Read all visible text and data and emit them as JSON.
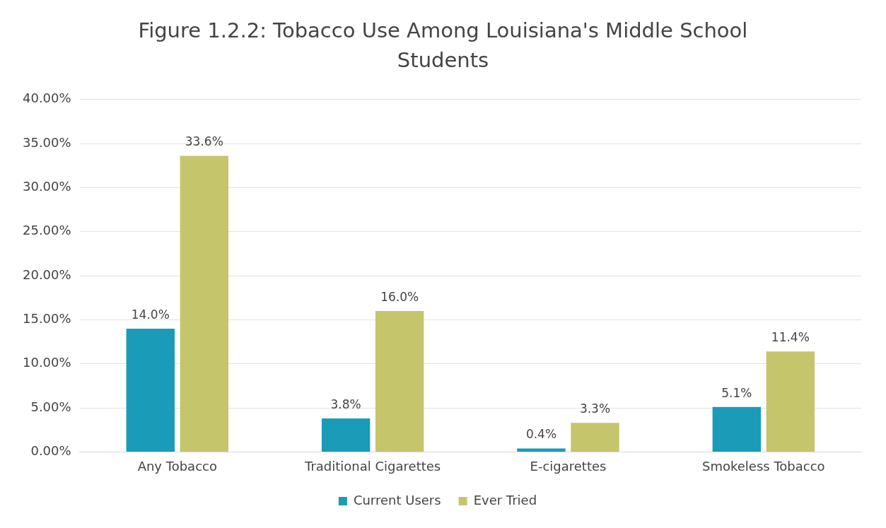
{
  "chart_data": {
    "type": "bar",
    "title": "Figure 1.2.2: Tobacco Use Among Louisiana's Middle School Students",
    "categories": [
      "Any Tobacco",
      "Traditional Cigarettes",
      "E-cigarettes",
      "Smokeless Tobacco"
    ],
    "series": [
      {
        "name": "Current Users",
        "color": "#1a9bb8",
        "values": [
          14.0,
          3.8,
          0.4,
          5.1
        ],
        "value_labels": [
          "14.0%",
          "3.8%",
          "0.4%",
          "5.1%"
        ]
      },
      {
        "name": "Ever Tried",
        "color": "#c5c56c",
        "values": [
          33.6,
          16.0,
          3.3,
          11.4
        ],
        "value_labels": [
          "33.6%",
          "16.0%",
          "3.3%",
          "11.4%"
        ]
      }
    ],
    "ylim": [
      0,
      40
    ],
    "yticks": [
      {
        "value": 0,
        "label": "0.00%"
      },
      {
        "value": 5,
        "label": "5.00%"
      },
      {
        "value": 10,
        "label": "10.00%"
      },
      {
        "value": 15,
        "label": "15.00%"
      },
      {
        "value": 20,
        "label": "20.00%"
      },
      {
        "value": 25,
        "label": "25.00%"
      },
      {
        "value": 30,
        "label": "30.00%"
      },
      {
        "value": 35,
        "label": "35.00%"
      },
      {
        "value": 40,
        "label": "40.00%"
      }
    ],
    "grid": "y",
    "legend": "bottom"
  }
}
